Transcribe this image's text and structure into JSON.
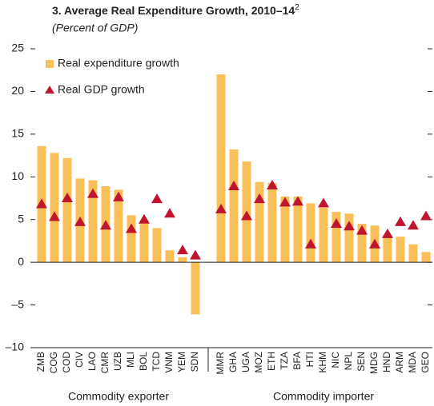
{
  "chart_data": {
    "type": "bar",
    "title": "3. Average Real Expenditure Growth, 2010–14",
    "title_superscript": "2",
    "subtitle": "(Percent of GDP)",
    "categories": [
      "ZMB",
      "COG",
      "COD",
      "CIV",
      "LAO",
      "CMR",
      "UZB",
      "MLI",
      "BOL",
      "TCD",
      "VNM",
      "YEM",
      "SDN",
      null,
      "MMR",
      "GHA",
      "UGA",
      "MOZ",
      "ETH",
      "TZA",
      "BFA",
      "HTI",
      "KHM",
      "NIC",
      "NPL",
      "SEN",
      "MDG",
      "HND",
      "ARM",
      "MDA",
      "GEO"
    ],
    "group_labels": [
      "Commodity exporter",
      "Commodity importer"
    ],
    "series": [
      {
        "name": "Real expenditure growth",
        "color": "#fbbf5a",
        "mark": "bar",
        "values": [
          13.6,
          12.8,
          12.2,
          9.8,
          9.6,
          8.9,
          8.5,
          5.5,
          4.6,
          4.0,
          1.4,
          0.6,
          -6.1,
          null,
          22.0,
          13.2,
          11.8,
          9.4,
          9.3,
          7.7,
          7.7,
          6.9,
          6.4,
          5.9,
          5.7,
          4.5,
          4.3,
          3.2,
          3.0,
          2.1,
          1.2
        ]
      },
      {
        "name": "Real GDP growth",
        "color": "#c0152f",
        "mark": "triangle",
        "values": [
          6.8,
          5.3,
          7.5,
          4.7,
          8.0,
          4.3,
          7.6,
          3.9,
          5.0,
          7.4,
          5.7,
          1.4,
          0.8,
          null,
          6.2,
          8.9,
          5.4,
          7.4,
          9.0,
          7.0,
          7.1,
          2.1,
          6.9,
          4.5,
          4.2,
          3.7,
          2.1,
          3.3,
          4.7,
          4.3,
          5.4
        ]
      }
    ],
    "ylim": [
      -10,
      25
    ],
    "yticks": [
      25,
      20,
      15,
      10,
      5,
      0,
      {
        "value": -5,
        "label": "–5"
      },
      {
        "value": -10,
        "label": "–10"
      }
    ]
  }
}
